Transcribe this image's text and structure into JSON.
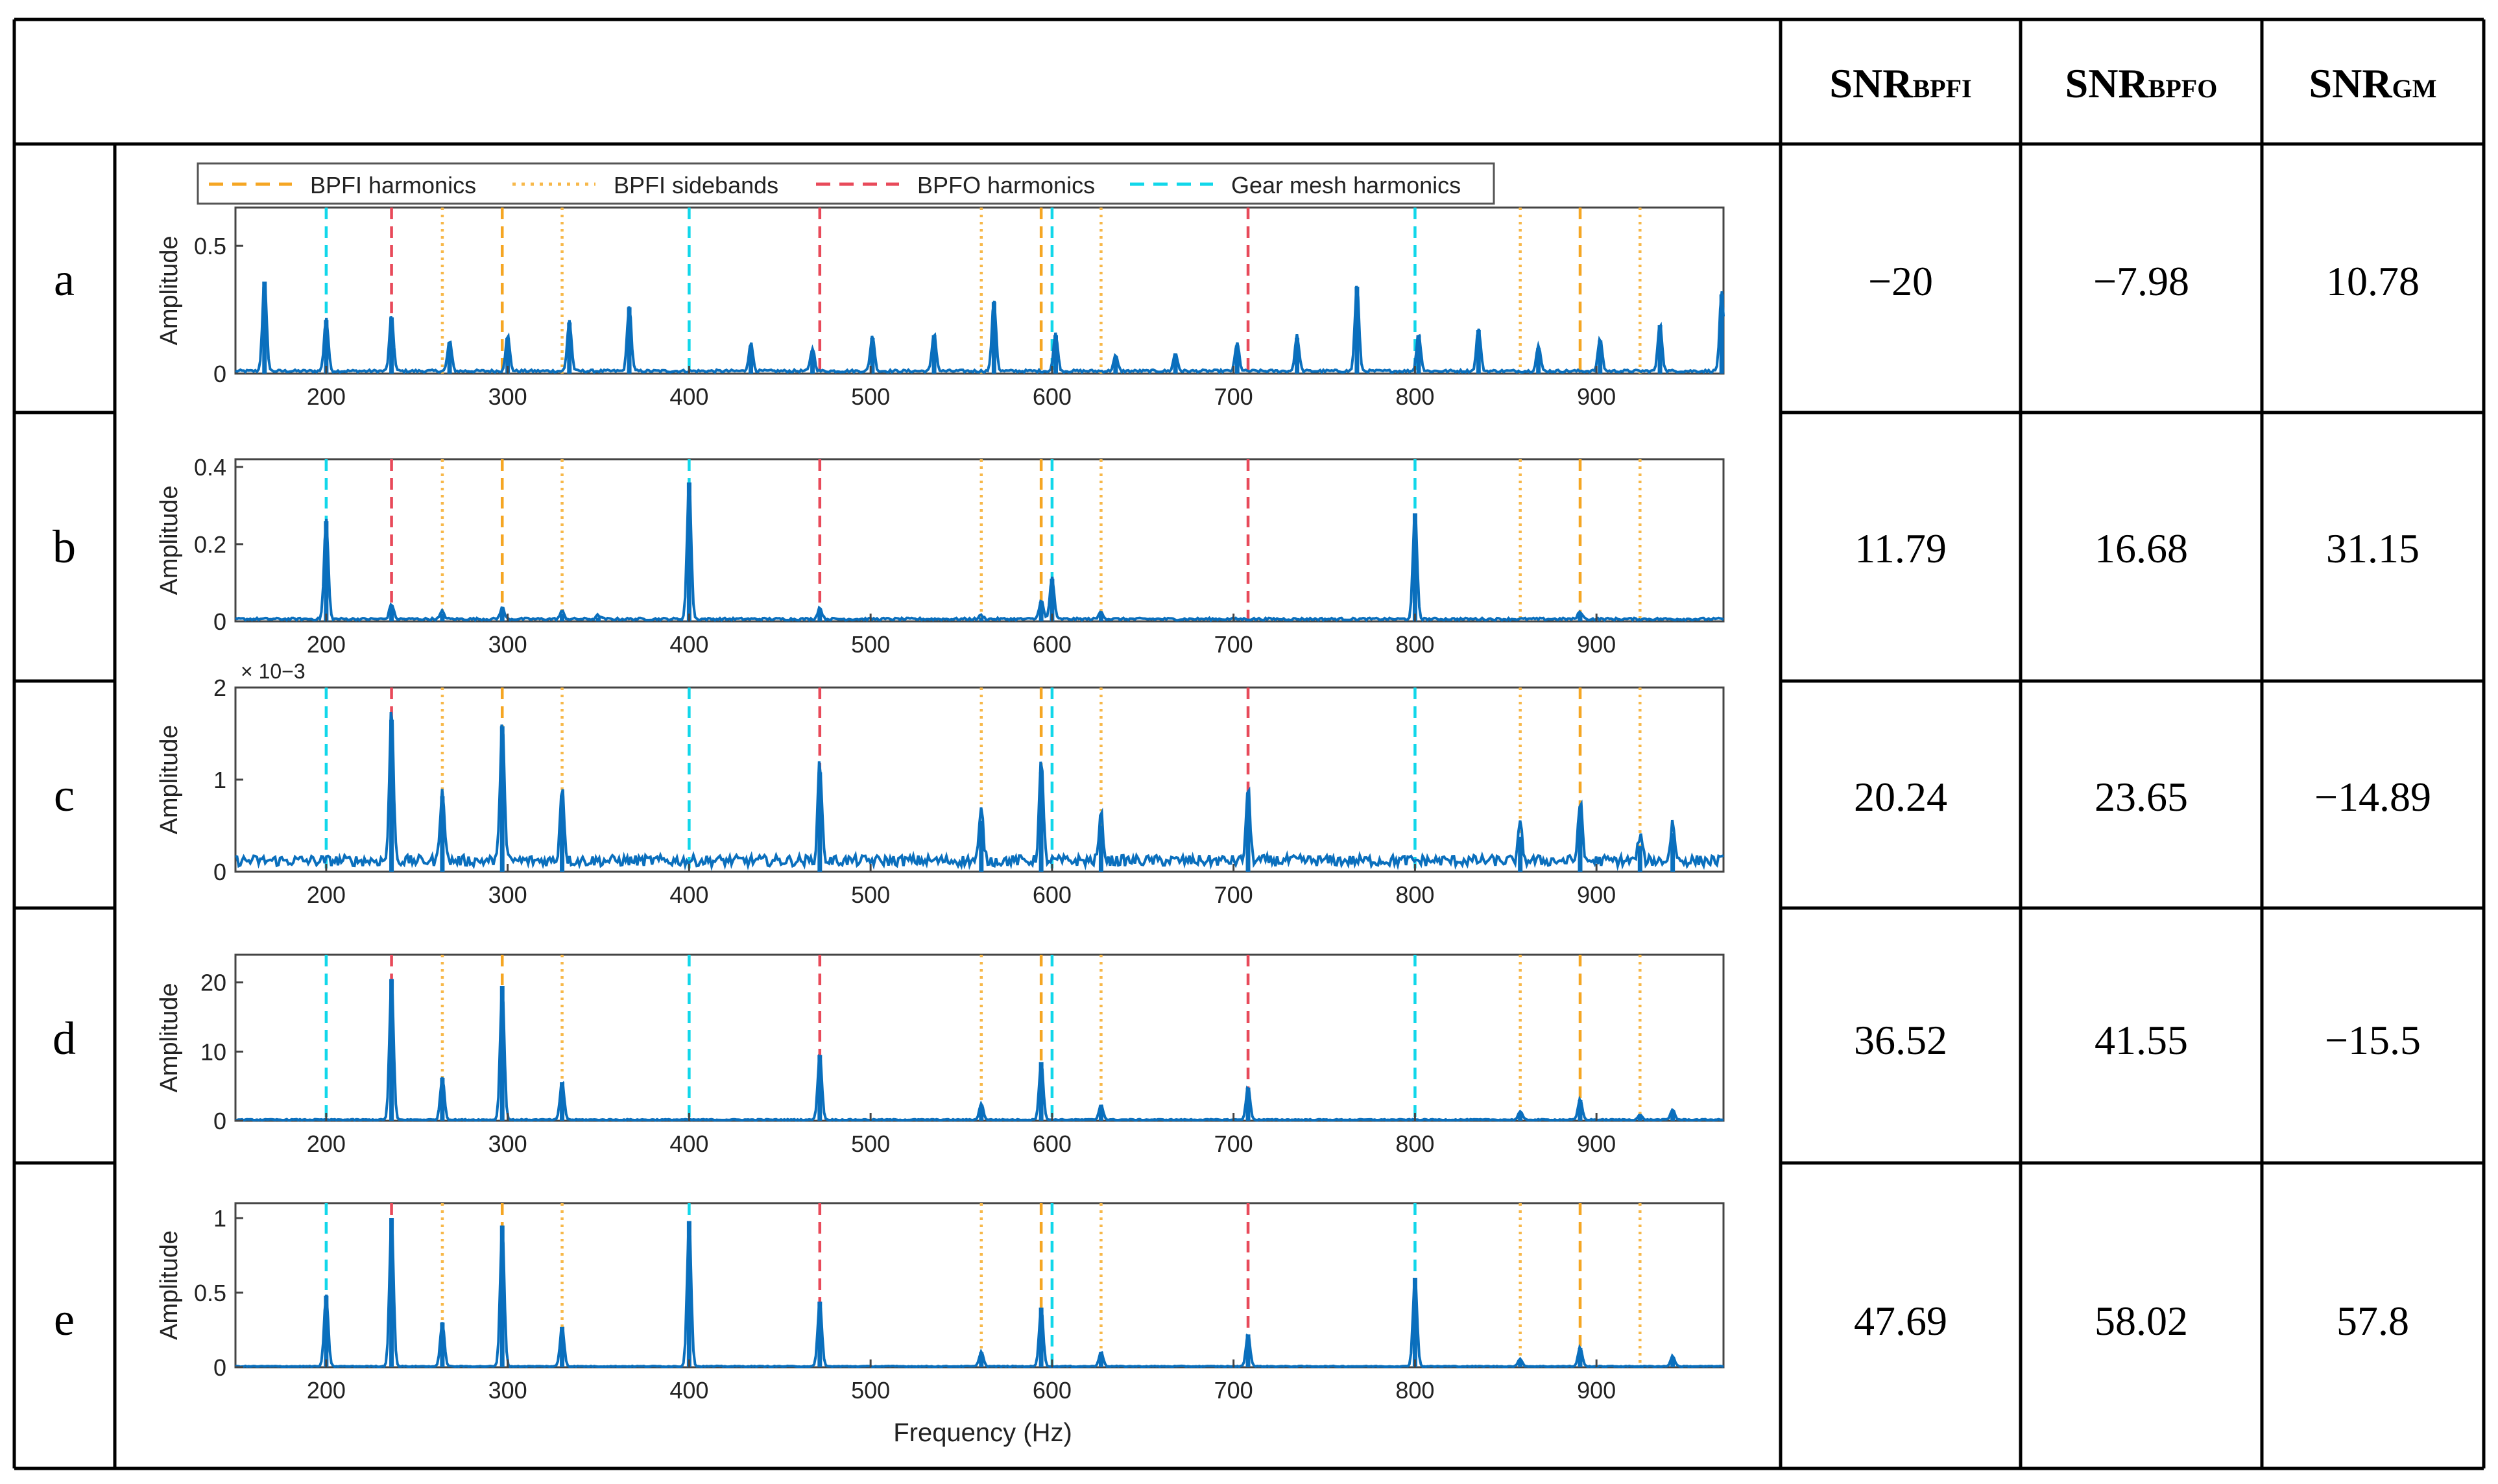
{
  "table": {
    "headers": [
      {
        "main": "SNR",
        "sub": "BPFI"
      },
      {
        "main": "SNR",
        "sub": "BPFO"
      },
      {
        "main": "SNR",
        "sub": "GM"
      }
    ],
    "rows": [
      {
        "label": "a",
        "values": [
          "−20",
          "−7.98",
          "10.78"
        ]
      },
      {
        "label": "b",
        "values": [
          "11.79",
          "16.68",
          "31.15"
        ]
      },
      {
        "label": "c",
        "values": [
          "20.24",
          "23.65",
          "−14.89"
        ]
      },
      {
        "label": "d",
        "values": [
          "36.52",
          "41.55",
          "−15.5"
        ]
      },
      {
        "label": "e",
        "values": [
          "47.69",
          "58.02",
          "57.8"
        ]
      }
    ]
  },
  "colors": {
    "bpfi_harmonics": "#f5a623",
    "bpfi_sidebands": "#f7b84a",
    "bpfo_harmonics": "#e84a5a",
    "gear_mesh": "#11d7ea",
    "spectrum": "#0a6fbd",
    "grid_axes": "#444444"
  },
  "chart_data": {
    "type": "line",
    "title": "",
    "xlabel": "Frequency (Hz)",
    "ylabel": "Amplitude",
    "xlim": [
      150,
      970
    ],
    "xticks": [
      200,
      300,
      400,
      500,
      600,
      700,
      800,
      900
    ],
    "legend": {
      "placement": "top",
      "entries": [
        {
          "name": "BPFI harmonics",
          "style": "dashed",
          "color": "#f5a623"
        },
        {
          "name": "BPFI sidebands",
          "style": "dotted",
          "color": "#f7b84a"
        },
        {
          "name": "BPFO harmonics",
          "style": "dashed",
          "color": "#e84a5a"
        },
        {
          "name": "Gear mesh harmonics",
          "style": "dashed",
          "color": "#11d7ea"
        }
      ]
    },
    "markers": {
      "bpfi_harmonics": [
        297,
        594,
        891
      ],
      "bpfi_sidebands": [
        264,
        330,
        561,
        627,
        858,
        924
      ],
      "bpfo_harmonics": [
        236,
        472,
        708
      ],
      "gear_mesh": [
        200,
        400,
        600,
        800
      ]
    },
    "panels": [
      {
        "label": "a",
        "ylim": [
          0,
          0.65
        ],
        "yticks": [
          0,
          0.5
        ],
        "ytick_labels": [
          "0",
          "0.5"
        ],
        "exponent": "",
        "noise": 0.01,
        "peaks": [
          [
            166,
            0.36
          ],
          [
            200,
            0.21
          ],
          [
            236,
            0.22
          ],
          [
            268,
            0.12
          ],
          [
            300,
            0.14
          ],
          [
            334,
            0.2
          ],
          [
            367,
            0.26
          ],
          [
            434,
            0.11
          ],
          [
            468,
            0.09
          ],
          [
            501,
            0.14
          ],
          [
            535,
            0.15
          ],
          [
            568,
            0.28
          ],
          [
            602,
            0.15
          ],
          [
            635,
            0.06
          ],
          [
            668,
            0.07
          ],
          [
            702,
            0.11
          ],
          [
            735,
            0.14
          ],
          [
            768,
            0.34
          ],
          [
            802,
            0.15
          ],
          [
            835,
            0.17
          ],
          [
            868,
            0.1
          ],
          [
            902,
            0.13
          ],
          [
            935,
            0.19
          ],
          [
            969,
            0.31
          ]
        ]
      },
      {
        "label": "b",
        "ylim": [
          0,
          0.42
        ],
        "yticks": [
          0,
          0.2,
          0.4
        ],
        "ytick_labels": [
          "0",
          "0.2",
          "0.4"
        ],
        "exponent": "",
        "noise": 0.006,
        "peaks": [
          [
            200,
            0.26
          ],
          [
            236,
            0.04
          ],
          [
            264,
            0.02
          ],
          [
            297,
            0.03
          ],
          [
            330,
            0.02
          ],
          [
            350,
            0.01
          ],
          [
            400,
            0.36
          ],
          [
            472,
            0.03
          ],
          [
            561,
            0.01
          ],
          [
            594,
            0.05
          ],
          [
            600,
            0.11
          ],
          [
            627,
            0.02
          ],
          [
            800,
            0.28
          ],
          [
            891,
            0.02
          ]
        ]
      },
      {
        "label": "c",
        "ylim": [
          0,
          0.002
        ],
        "yticks": [
          0,
          0.001,
          0.002
        ],
        "ytick_labels": [
          "0",
          "1",
          "2"
        ],
        "exponent": "× 10−3",
        "noise": 0.00012,
        "peaks": [
          [
            236,
            0.00165
          ],
          [
            264,
            0.00082
          ],
          [
            297,
            0.00158
          ],
          [
            330,
            0.00082
          ],
          [
            472,
            0.00108
          ],
          [
            561,
            0.00055
          ],
          [
            594,
            0.00108
          ],
          [
            627,
            0.0005
          ],
          [
            708,
            0.00078
          ],
          [
            858,
            0.00038
          ],
          [
            891,
            0.00066
          ],
          [
            924,
            0.00028
          ],
          [
            942,
            0.00042
          ]
        ]
      },
      {
        "label": "d",
        "ylim": [
          0,
          24
        ],
        "yticks": [
          0,
          10,
          20
        ],
        "ytick_labels": [
          "0",
          "10",
          "20"
        ],
        "exponent": "",
        "noise": 0.15,
        "peaks": [
          [
            236,
            20.5
          ],
          [
            264,
            6.2
          ],
          [
            297,
            19.5
          ],
          [
            330,
            5.6
          ],
          [
            472,
            9.5
          ],
          [
            561,
            2.3
          ],
          [
            594,
            8.5
          ],
          [
            627,
            2.2
          ],
          [
            708,
            4.8
          ],
          [
            858,
            1.2
          ],
          [
            891,
            3.0
          ],
          [
            924,
            0.7
          ],
          [
            942,
            1.5
          ]
        ]
      },
      {
        "label": "e",
        "ylim": [
          0,
          1.1
        ],
        "yticks": [
          0,
          0.5,
          1
        ],
        "ytick_labels": [
          "0",
          "0.5",
          "1"
        ],
        "exponent": "",
        "noise": 0.006,
        "peaks": [
          [
            200,
            0.48
          ],
          [
            236,
            1.0
          ],
          [
            264,
            0.3
          ],
          [
            297,
            0.95
          ],
          [
            330,
            0.27
          ],
          [
            400,
            0.98
          ],
          [
            472,
            0.44
          ],
          [
            561,
            0.1
          ],
          [
            594,
            0.4
          ],
          [
            627,
            0.1
          ],
          [
            708,
            0.22
          ],
          [
            800,
            0.6
          ],
          [
            858,
            0.05
          ],
          [
            891,
            0.13
          ],
          [
            942,
            0.07
          ]
        ]
      }
    ]
  }
}
